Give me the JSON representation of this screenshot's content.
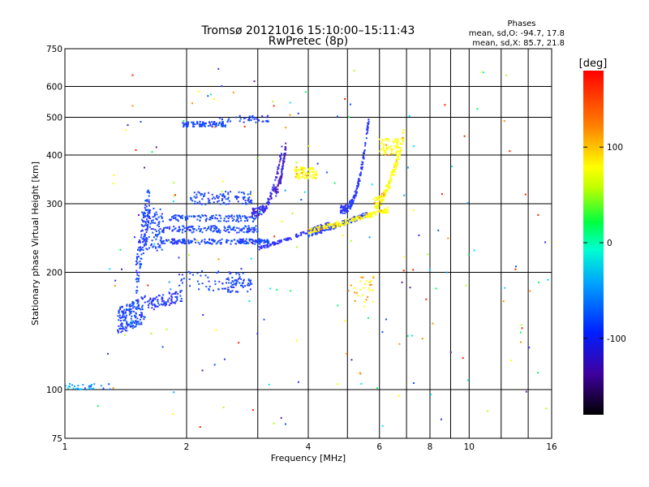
{
  "chart_data": {
    "type": "scatter",
    "title": "Tromsø 20121016 15:10:00–15:11:43",
    "subtitle": "RwPretec (8p)",
    "xlabel": "Frequency [MHz]",
    "ylabel": "Stationary phase Virtual Height [km]",
    "x_scale": "log",
    "y_scale": "log",
    "xlim": [
      1,
      16
    ],
    "ylim": [
      75,
      750
    ],
    "x_ticks": [
      1,
      2,
      4,
      6,
      8,
      10,
      16
    ],
    "x_grid": [
      2,
      3,
      4,
      5,
      6,
      7,
      8,
      9,
      10,
      12,
      14
    ],
    "y_ticks": [
      75,
      100,
      200,
      300,
      400,
      500,
      600,
      750
    ],
    "grid": true,
    "info": {
      "title": "Phases",
      "line1": "mean, sd,O: -94.7, 17.8",
      "line2": "mean, sd,X: 85.7, 21.8"
    },
    "colorbar": {
      "label": "[deg]",
      "range": [
        -180,
        180
      ],
      "ticks": [
        100,
        0,
        -100
      ]
    }
  }
}
